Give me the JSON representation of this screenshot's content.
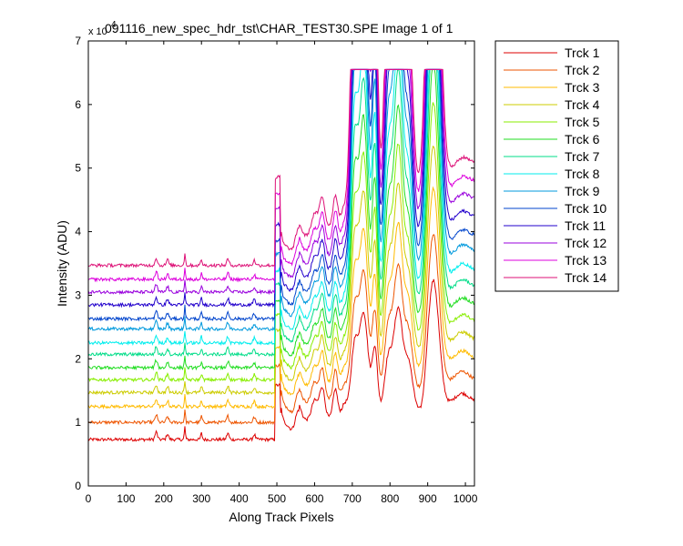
{
  "chart_data": {
    "type": "line",
    "title": "091116_new_spec_hdr_tst\\CHAR_TEST30.SPE  Image 1 of 1",
    "xlabel": "Along Track Pixels",
    "ylabel": "Intensity (ADU)",
    "y_exponent_label": "x 10",
    "y_exponent": "4",
    "xlim": [
      0,
      1024
    ],
    "ylim": [
      0,
      7
    ],
    "xticks": [
      0,
      100,
      200,
      300,
      400,
      500,
      600,
      700,
      800,
      900,
      1000
    ],
    "yticks": [
      0,
      1,
      2,
      3,
      4,
      5,
      6,
      7
    ],
    "grid": false,
    "legend_position": "outside-right",
    "saturation_level": 6.55,
    "series": [
      {
        "name": "Trck 1",
        "color": "#dd0000",
        "baseline": 0.73
      },
      {
        "name": "Trck 2",
        "color": "#ee5500",
        "baseline": 1.0
      },
      {
        "name": "Trck 3",
        "color": "#ffbb00",
        "baseline": 1.25
      },
      {
        "name": "Trck 4",
        "color": "#cccc00",
        "baseline": 1.47
      },
      {
        "name": "Trck 5",
        "color": "#88ee00",
        "baseline": 1.67
      },
      {
        "name": "Trck 6",
        "color": "#22dd22",
        "baseline": 1.86
      },
      {
        "name": "Trck 7",
        "color": "#00dd88",
        "baseline": 2.07
      },
      {
        "name": "Trck 8",
        "color": "#00eeee",
        "baseline": 2.25
      },
      {
        "name": "Trck 9",
        "color": "#0099dd",
        "baseline": 2.47
      },
      {
        "name": "Trck 10",
        "color": "#0044cc",
        "baseline": 2.63
      },
      {
        "name": "Trck 11",
        "color": "#2200cc",
        "baseline": 2.85
      },
      {
        "name": "Trck 12",
        "color": "#9900dd",
        "baseline": 3.05
      },
      {
        "name": "Trck 13",
        "color": "#dd00dd",
        "baseline": 3.25
      },
      {
        "name": "Trck 14",
        "color": "#dd1177",
        "baseline": 3.47
      }
    ]
  }
}
